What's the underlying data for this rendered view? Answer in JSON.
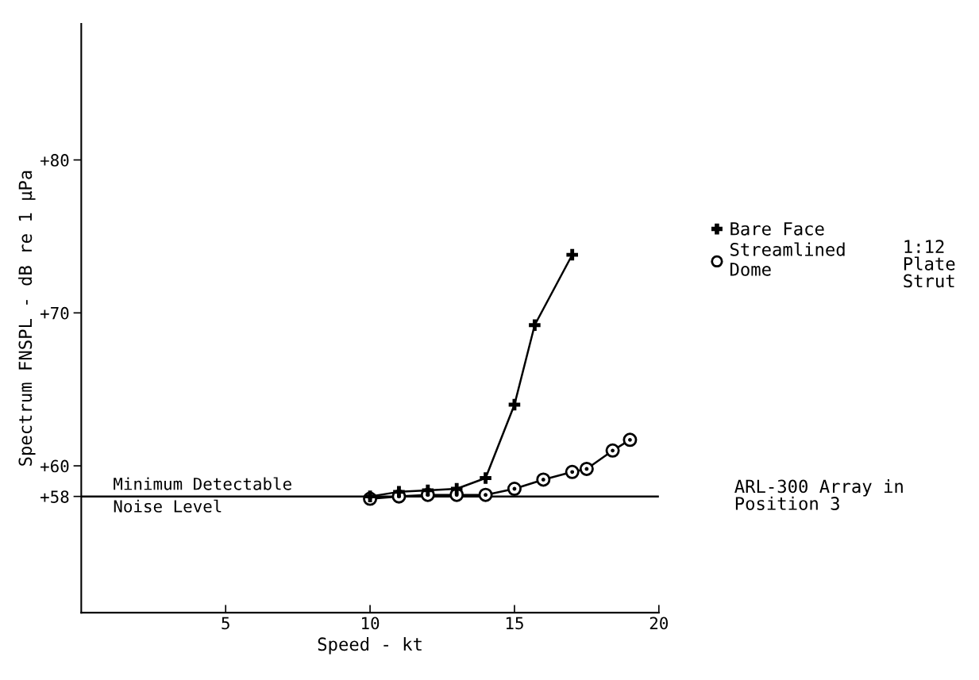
{
  "chart_data": {
    "type": "line",
    "xlabel": "Speed - kt",
    "ylabel": "Spectrum FNSPL - dB re 1 µPa",
    "xlim": [
      0.0,
      20.0
    ],
    "xticks": [
      5,
      10,
      15,
      20
    ],
    "ylim": [
      50.4,
      88.9
    ],
    "yticks": [
      {
        "value": 58,
        "label": "+58"
      },
      {
        "value": 60,
        "label": "+60"
      },
      {
        "value": 70,
        "label": "+70"
      },
      {
        "value": 80,
        "label": "+80"
      }
    ],
    "series": [
      {
        "name": "Bare Face",
        "color": "#000000",
        "marker": "cross",
        "x": [
          10,
          11,
          12,
          13,
          14,
          15,
          15.7,
          17
        ],
        "values": [
          58.0,
          58.3,
          58.4,
          58.5,
          59.2,
          64.0,
          69.2,
          73.8
        ]
      },
      {
        "name": "Streamlined\nDome",
        "color": "#000000",
        "marker": "circle",
        "x": [
          10,
          11,
          12,
          13,
          14,
          15,
          16,
          17,
          17.5,
          18.4,
          19
        ],
        "values": [
          57.85,
          58.0,
          58.1,
          58.1,
          58.1,
          58.5,
          59.1,
          59.6,
          59.8,
          61.0,
          61.7
        ]
      }
    ],
    "ref_lines": [
      {
        "axis": "y",
        "value": 58,
        "label": "Minimum Detectable\nNoise Level",
        "color": "#000000",
        "line_style": "solid"
      }
    ],
    "legend": "right",
    "grid": false,
    "line_style": "solid",
    "annotations": [
      "1:12\nPlate\nStrut",
      "ARL-300 Array in\nPosition 3"
    ]
  }
}
